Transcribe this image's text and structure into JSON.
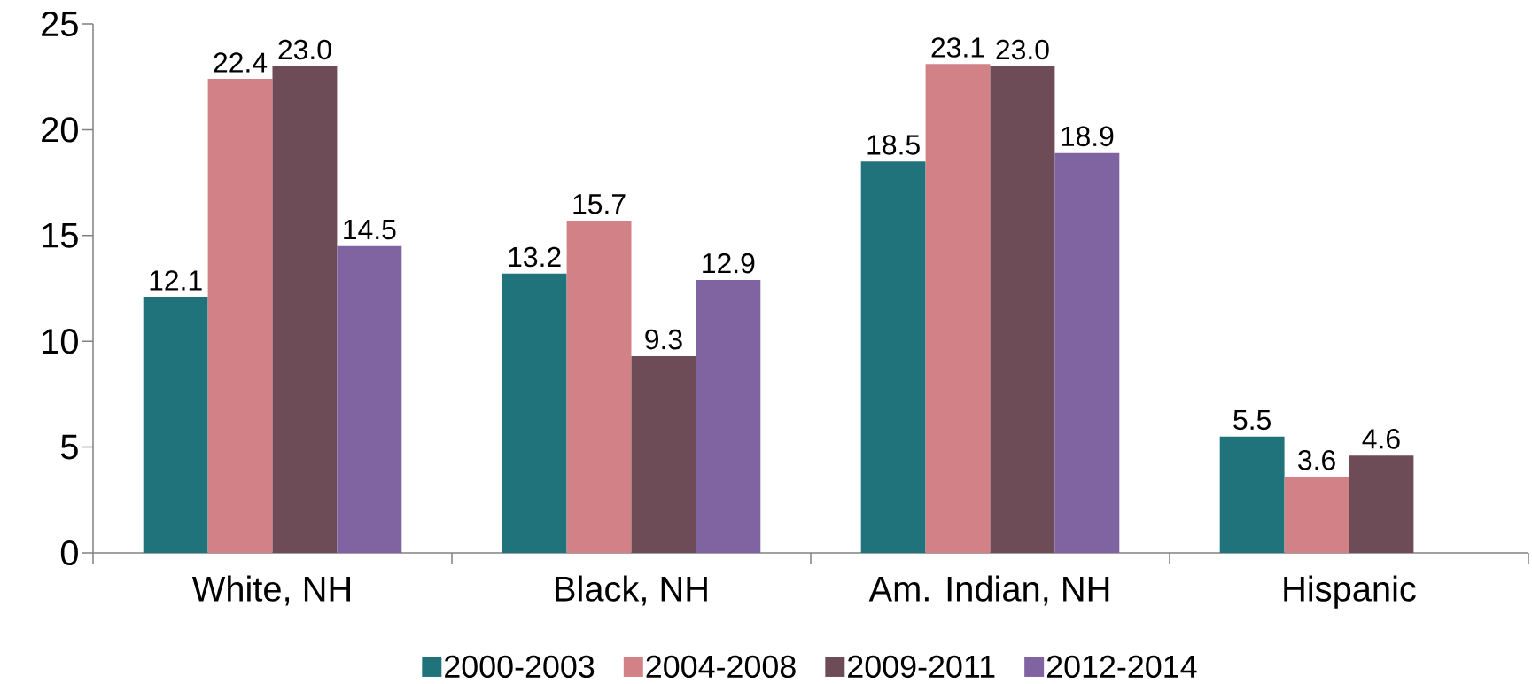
{
  "chart_data": {
    "type": "bar",
    "categories": [
      "White, NH",
      "Black, NH",
      "Am. Indian, NH",
      "Hispanic"
    ],
    "series": [
      {
        "name": "2000-2003",
        "color": "#21737b",
        "values": [
          12.1,
          13.2,
          18.5,
          5.5
        ],
        "value_labels": [
          "12.1",
          "13.2",
          "18.5",
          "5.5"
        ]
      },
      {
        "name": "2004-2008",
        "color": "#d28287",
        "values": [
          22.4,
          15.7,
          23.1,
          3.6
        ],
        "value_labels": [
          "22.4",
          "15.7",
          "23.1",
          "3.6"
        ]
      },
      {
        "name": "2009-2011",
        "color": "#6d4c57",
        "values": [
          23.0,
          9.3,
          23.0,
          4.6
        ],
        "value_labels": [
          "23.0",
          "9.3",
          "23.0",
          "4.6"
        ]
      },
      {
        "name": "2012-2014",
        "color": "#8064a2",
        "values": [
          14.5,
          12.9,
          18.9,
          null
        ],
        "value_labels": [
          "14.5",
          "12.9",
          "18.9",
          null
        ]
      }
    ],
    "ylim": [
      0,
      25
    ],
    "yticks": [
      0,
      5,
      10,
      15,
      20,
      25
    ],
    "grid": false,
    "legend": "bottom"
  }
}
